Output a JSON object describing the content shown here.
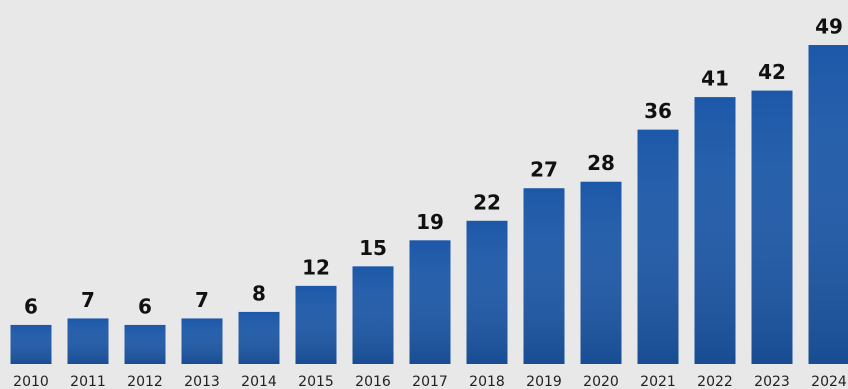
{
  "chart_data": {
    "type": "bar",
    "categories": [
      "2010",
      "2011",
      "2012",
      "2013",
      "2014",
      "2015",
      "2016",
      "2017",
      "2018",
      "2019",
      "2020",
      "2021",
      "2022",
      "2023",
      "2024"
    ],
    "values": [
      6,
      7,
      6,
      7,
      8,
      12,
      15,
      19,
      22,
      27,
      28,
      36,
      41,
      42,
      49
    ],
    "color": "#1c58a8",
    "ylim": [
      0,
      50
    ]
  }
}
